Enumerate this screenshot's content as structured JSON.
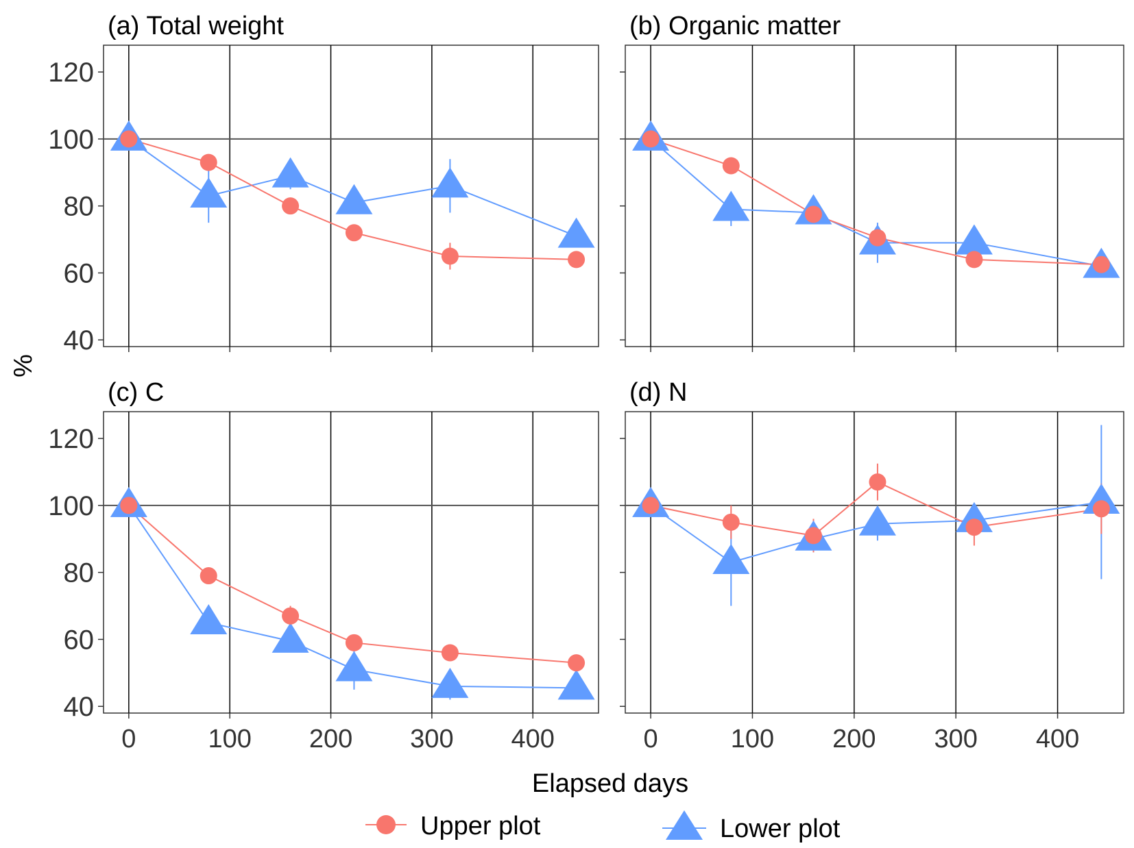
{
  "figure": {
    "ylabel": "%",
    "xlabel": "Elapsed days",
    "legend": [
      {
        "label": "Upper plot",
        "marker": "circle",
        "color": "#F8766D"
      },
      {
        "label": "Lower plot",
        "marker": "triangle",
        "color": "#619CFF"
      }
    ]
  },
  "colors": {
    "upper": "#F8766D",
    "lower": "#619CFF",
    "axis": "#333333",
    "reference": "#555555"
  },
  "chart_data": [
    {
      "type": "line",
      "title": "(a) Total weight",
      "x_ticks": [
        "0",
        "100",
        "200",
        "300",
        "400"
      ],
      "y_ticks": [
        "40",
        "60",
        "80",
        "100",
        "120"
      ],
      "xlim": [
        -25,
        465
      ],
      "ylim": [
        38,
        128
      ],
      "show_x_tick_labels": false,
      "show_y_tick_labels": true,
      "reference_line": 100,
      "series": [
        {
          "name": "Upper plot",
          "x": [
            0,
            79,
            160,
            223,
            318,
            443
          ],
          "y": [
            100,
            93,
            80,
            72,
            65,
            64
          ],
          "err": [
            0,
            2,
            1,
            2,
            4,
            2
          ]
        },
        {
          "name": "Lower plot",
          "x": [
            0,
            79,
            160,
            223,
            318,
            443
          ],
          "y": [
            100,
            83,
            89,
            81,
            86,
            71
          ],
          "err": [
            0,
            8,
            4,
            3,
            8,
            3
          ]
        }
      ]
    },
    {
      "type": "line",
      "title": "(b) Organic matter",
      "x_ticks": [
        "0",
        "100",
        "200",
        "300",
        "400"
      ],
      "y_ticks": [
        "40",
        "60",
        "80",
        "100",
        "120"
      ],
      "xlim": [
        -25,
        465
      ],
      "ylim": [
        38,
        128
      ],
      "show_x_tick_labels": false,
      "show_y_tick_labels": false,
      "reference_line": 100,
      "series": [
        {
          "name": "Upper plot",
          "x": [
            0,
            79,
            160,
            223,
            318,
            443
          ],
          "y": [
            100,
            92,
            77.5,
            70.5,
            64,
            62.5
          ],
          "err": [
            0,
            1.5,
            2,
            2,
            2,
            1
          ]
        },
        {
          "name": "Lower plot",
          "x": [
            0,
            79,
            160,
            223,
            318,
            443
          ],
          "y": [
            100,
            79,
            78,
            69,
            69,
            62
          ],
          "err": [
            0,
            5,
            3,
            6,
            3,
            2
          ]
        }
      ]
    },
    {
      "type": "line",
      "title": "(c) C",
      "x_ticks": [
        "0",
        "100",
        "200",
        "300",
        "400"
      ],
      "y_ticks": [
        "40",
        "60",
        "80",
        "100",
        "120"
      ],
      "xlim": [
        -25,
        465
      ],
      "ylim": [
        38,
        128
      ],
      "show_x_tick_labels": true,
      "show_y_tick_labels": true,
      "reference_line": 100,
      "series": [
        {
          "name": "Upper plot",
          "x": [
            0,
            79,
            160,
            223,
            318,
            443
          ],
          "y": [
            100,
            79,
            67,
            59,
            56,
            53
          ],
          "err": [
            0,
            1.5,
            3,
            1.5,
            1.5,
            1.5
          ]
        },
        {
          "name": "Lower plot",
          "x": [
            0,
            79,
            160,
            223,
            318,
            443
          ],
          "y": [
            100,
            65,
            59.5,
            51,
            46,
            45.5
          ],
          "err": [
            0,
            2,
            3,
            6,
            4,
            2
          ]
        }
      ]
    },
    {
      "type": "line",
      "title": "(d) N",
      "x_ticks": [
        "0",
        "100",
        "200",
        "300",
        "400"
      ],
      "y_ticks": [
        "40",
        "60",
        "80",
        "100",
        "120"
      ],
      "xlim": [
        -25,
        465
      ],
      "ylim": [
        38,
        128
      ],
      "show_x_tick_labels": true,
      "show_y_tick_labels": false,
      "reference_line": 100,
      "series": [
        {
          "name": "Upper plot",
          "x": [
            0,
            79,
            160,
            223,
            318,
            443
          ],
          "y": [
            100,
            95,
            91,
            107,
            93.5,
            99
          ],
          "err": [
            0,
            5,
            5,
            5.5,
            5.5,
            7.5
          ]
        },
        {
          "name": "Lower plot",
          "x": [
            0,
            79,
            160,
            223,
            318,
            443
          ],
          "y": [
            100,
            83,
            90,
            94.5,
            95.5,
            101
          ],
          "err": [
            0,
            13,
            4,
            5,
            3,
            23
          ]
        }
      ]
    }
  ]
}
